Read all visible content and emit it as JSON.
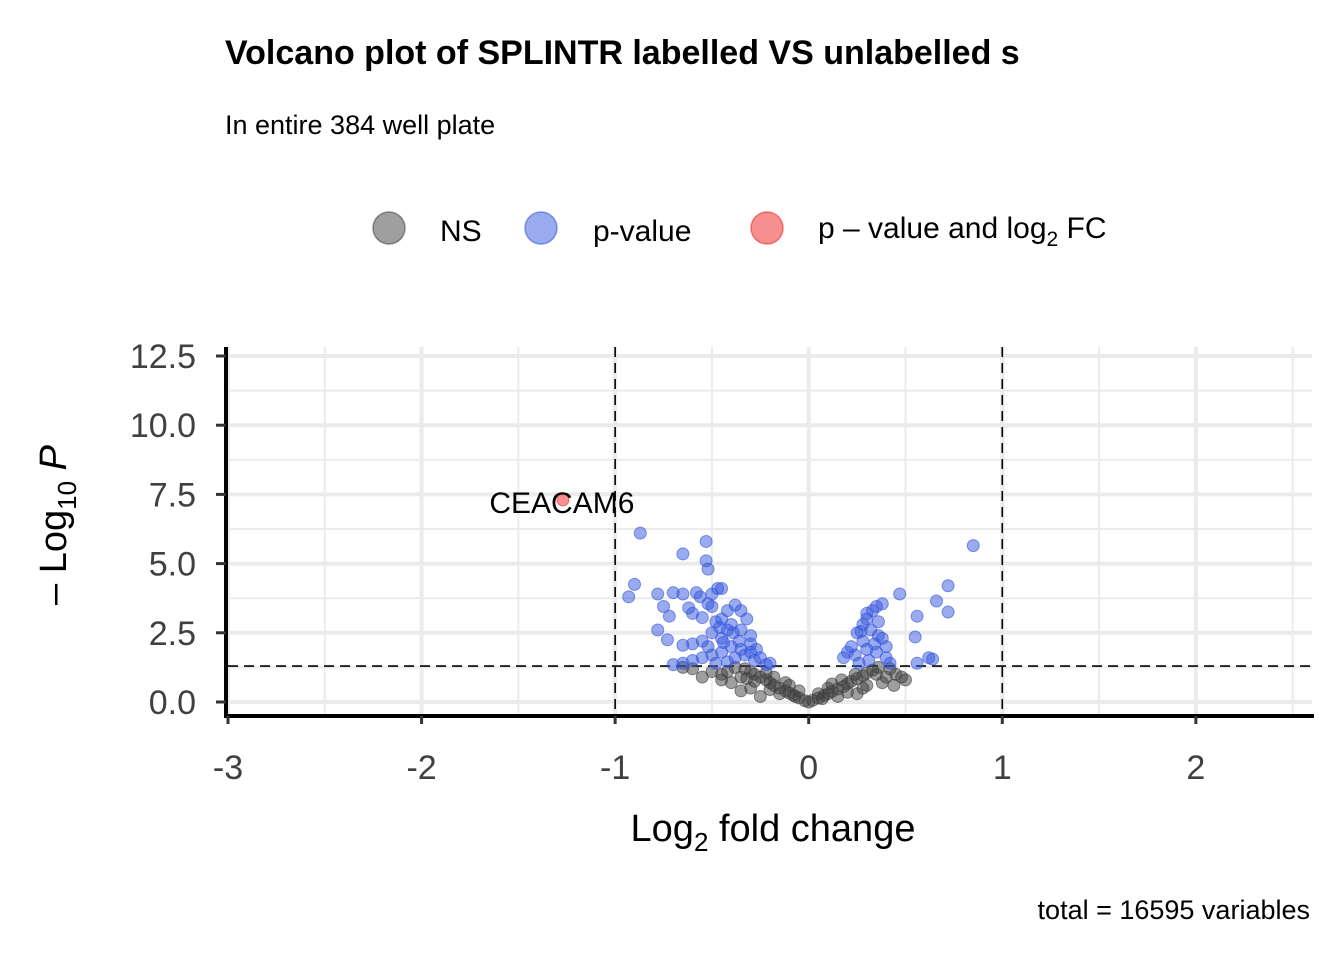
{
  "chart_data": {
    "type": "scatter",
    "title": "Volcano plot of SPLINTR labelled VS unlabelled s",
    "subtitle": "In entire 384 well plate",
    "caption": "total = 16595 variables",
    "xlabel": {
      "main": "Log",
      "sub": "2",
      "rest": " fold change"
    },
    "ylabel": {
      "prefix": "– Log",
      "sub": "10",
      "italic": "P"
    },
    "xlim": [
      -3,
      2.6
    ],
    "ylim": [
      0,
      12.5
    ],
    "x_ticks": [
      {
        "value": -3,
        "label": "-3"
      },
      {
        "value": -2,
        "label": "-2"
      },
      {
        "value": -1,
        "label": "-1"
      },
      {
        "value": 0,
        "label": "0"
      },
      {
        "value": 1,
        "label": "1"
      },
      {
        "value": 2,
        "label": "2"
      }
    ],
    "y_ticks": [
      {
        "value": 0,
        "label": "0.0"
      },
      {
        "value": 2.5,
        "label": "2.5"
      },
      {
        "value": 5,
        "label": "5.0"
      },
      {
        "value": 7.5,
        "label": "7.5"
      },
      {
        "value": 10,
        "label": "10.0"
      },
      {
        "value": 12.5,
        "label": "12.5"
      }
    ],
    "grid": true,
    "legend_position": "top",
    "legend": [
      {
        "key": "ns",
        "label": "NS",
        "color": "#404040"
      },
      {
        "key": "p",
        "label": "p-value",
        "color": "#3355dd"
      },
      {
        "key": "fc",
        "label": "p – value and log",
        "sub": "2",
        "tail": " FC",
        "color": "#ee2222"
      }
    ],
    "thresholds": {
      "x": [
        -1,
        1
      ],
      "y": 1.3
    },
    "series": [
      {
        "name": "NS",
        "color": "#404040",
        "points": [
          [
            0.0,
            0.0
          ],
          [
            -0.02,
            0.05
          ],
          [
            0.02,
            0.06
          ],
          [
            -0.05,
            0.15
          ],
          [
            0.05,
            0.14
          ],
          [
            -0.08,
            0.25
          ],
          [
            0.08,
            0.24
          ],
          [
            -0.1,
            0.32
          ],
          [
            0.1,
            0.3
          ],
          [
            -0.12,
            0.4
          ],
          [
            0.12,
            0.38
          ],
          [
            -0.15,
            0.5
          ],
          [
            0.15,
            0.47
          ],
          [
            -0.18,
            0.6
          ],
          [
            0.18,
            0.56
          ],
          [
            -0.2,
            0.7
          ],
          [
            0.2,
            0.66
          ],
          [
            -0.22,
            0.8
          ],
          [
            0.22,
            0.75
          ],
          [
            -0.25,
            0.9
          ],
          [
            0.25,
            0.85
          ],
          [
            -0.28,
            1.0
          ],
          [
            0.28,
            0.95
          ],
          [
            -0.3,
            1.1
          ],
          [
            0.3,
            1.05
          ],
          [
            -0.33,
            1.2
          ],
          [
            0.33,
            1.15
          ],
          [
            -0.35,
            0.9
          ],
          [
            0.35,
            1.0
          ],
          [
            -0.4,
            0.7
          ],
          [
            0.4,
            0.9
          ],
          [
            -0.45,
            0.8
          ],
          [
            0.45,
            1.0
          ],
          [
            0.5,
            0.8
          ],
          [
            0.48,
            0.9
          ],
          [
            -0.5,
            1.1
          ],
          [
            -0.55,
            0.9
          ],
          [
            -0.6,
            1.2
          ],
          [
            -0.65,
            1.25
          ],
          [
            -0.05,
            0.4
          ],
          [
            0.05,
            0.3
          ],
          [
            -0.1,
            0.6
          ],
          [
            0.1,
            0.5
          ],
          [
            -0.15,
            0.3
          ],
          [
            0.15,
            0.2
          ],
          [
            -0.2,
            0.45
          ],
          [
            0.2,
            0.35
          ],
          [
            -0.25,
            0.2
          ],
          [
            0.25,
            0.3
          ],
          [
            -0.3,
            0.5
          ],
          [
            0.3,
            0.6
          ],
          [
            -0.35,
            0.4
          ],
          [
            0.38,
            0.7
          ],
          [
            -0.18,
            0.9
          ],
          [
            0.17,
            0.8
          ],
          [
            -0.12,
            0.7
          ],
          [
            0.12,
            0.65
          ],
          [
            -0.28,
            0.75
          ],
          [
            0.28,
            0.5
          ],
          [
            -0.42,
            1.1
          ],
          [
            0.42,
            1.2
          ],
          [
            -0.38,
            1.25
          ],
          [
            0.36,
            1.25
          ],
          [
            0.44,
            0.6
          ],
          [
            -0.45,
            1.0
          ],
          [
            -0.07,
            0.2
          ],
          [
            0.07,
            0.12
          ],
          [
            -0.22,
            1.05
          ],
          [
            0.24,
            1.0
          ],
          [
            -0.32,
            0.85
          ]
        ]
      },
      {
        "name": "p-value",
        "color": "#3355dd",
        "points": [
          [
            -0.87,
            6.1
          ],
          [
            -0.53,
            5.8
          ],
          [
            -0.53,
            5.1
          ],
          [
            -0.65,
            5.35
          ],
          [
            -0.52,
            4.8
          ],
          [
            -0.52,
            3.55
          ],
          [
            -0.9,
            4.25
          ],
          [
            -0.93,
            3.8
          ],
          [
            -0.58,
            3.95
          ],
          [
            -0.5,
            3.9
          ],
          [
            -0.47,
            4.1
          ],
          [
            -0.45,
            4.1
          ],
          [
            -0.7,
            3.95
          ],
          [
            -0.65,
            3.9
          ],
          [
            -0.75,
            3.45
          ],
          [
            -0.78,
            3.9
          ],
          [
            -0.72,
            3.1
          ],
          [
            -0.62,
            3.4
          ],
          [
            -0.6,
            3.2
          ],
          [
            -0.56,
            3.8
          ],
          [
            -0.5,
            3.45
          ],
          [
            -0.42,
            3.3
          ],
          [
            -0.38,
            3.5
          ],
          [
            -0.35,
            3.3
          ],
          [
            -0.32,
            3.0
          ],
          [
            -0.45,
            3.0
          ],
          [
            -0.55,
            3.05
          ],
          [
            -0.48,
            2.9
          ],
          [
            -0.4,
            2.8
          ],
          [
            -0.35,
            2.6
          ],
          [
            -0.3,
            2.4
          ],
          [
            -0.42,
            2.6
          ],
          [
            -0.5,
            2.5
          ],
          [
            -0.45,
            2.3
          ],
          [
            -0.55,
            2.2
          ],
          [
            -0.6,
            2.1
          ],
          [
            -0.65,
            2.05
          ],
          [
            -0.78,
            2.6
          ],
          [
            -0.73,
            2.25
          ],
          [
            -0.4,
            2.0
          ],
          [
            -0.35,
            1.9
          ],
          [
            -0.3,
            1.8
          ],
          [
            -0.25,
            1.6
          ],
          [
            -0.28,
            1.5
          ],
          [
            -0.33,
            1.7
          ],
          [
            -0.38,
            1.6
          ],
          [
            -0.45,
            1.8
          ],
          [
            -0.5,
            1.7
          ],
          [
            -0.55,
            1.6
          ],
          [
            -0.6,
            1.5
          ],
          [
            -0.65,
            1.4
          ],
          [
            -0.7,
            1.35
          ],
          [
            -0.48,
            1.4
          ],
          [
            -0.42,
            1.45
          ],
          [
            -0.36,
            2.2
          ],
          [
            -0.44,
            2.15
          ],
          [
            -0.52,
            2.0
          ],
          [
            -0.2,
            1.4
          ],
          [
            -0.22,
            1.35
          ],
          [
            -0.27,
            1.9
          ],
          [
            -0.3,
            2.1
          ],
          [
            -0.39,
            2.5
          ],
          [
            -0.46,
            2.7
          ],
          [
            0.85,
            5.65
          ],
          [
            0.72,
            4.2
          ],
          [
            0.66,
            3.65
          ],
          [
            0.72,
            3.25
          ],
          [
            0.56,
            3.1
          ],
          [
            0.55,
            2.35
          ],
          [
            0.47,
            3.9
          ],
          [
            0.38,
            3.55
          ],
          [
            0.35,
            3.45
          ],
          [
            0.33,
            3.3
          ],
          [
            0.3,
            3.0
          ],
          [
            0.28,
            2.8
          ],
          [
            0.25,
            2.5
          ],
          [
            0.32,
            2.6
          ],
          [
            0.36,
            2.4
          ],
          [
            0.28,
            2.2
          ],
          [
            0.22,
            2.0
          ],
          [
            0.2,
            1.8
          ],
          [
            0.18,
            1.6
          ],
          [
            0.24,
            1.7
          ],
          [
            0.3,
            1.9
          ],
          [
            0.34,
            2.1
          ],
          [
            0.38,
            2.3
          ],
          [
            0.4,
            2.0
          ],
          [
            0.35,
            1.8
          ],
          [
            0.31,
            1.5
          ],
          [
            0.26,
            1.4
          ],
          [
            0.4,
            1.6
          ],
          [
            0.42,
            1.4
          ],
          [
            0.56,
            1.4
          ],
          [
            0.62,
            1.6
          ],
          [
            0.64,
            1.55
          ],
          [
            0.36,
            2.9
          ],
          [
            0.3,
            3.2
          ],
          [
            0.27,
            2.55
          ]
        ]
      },
      {
        "name": "p – value and log2 FC",
        "color": "#ee2222",
        "points": [
          [
            -1.27,
            7.3
          ]
        ],
        "labels": [
          {
            "x": -1.27,
            "y": 7.3,
            "text": "CEACAM6"
          }
        ]
      }
    ]
  }
}
